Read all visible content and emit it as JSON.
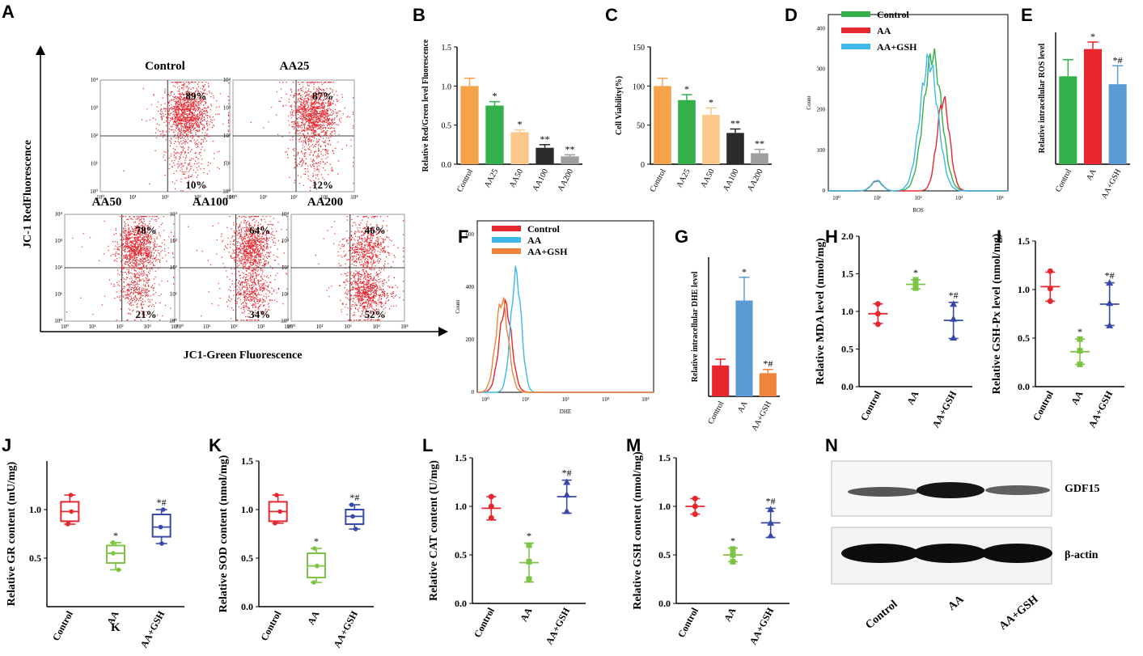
{
  "figure": {
    "letters": [
      "A",
      "B",
      "C",
      "D",
      "E",
      "F",
      "G",
      "H",
      "I",
      "J",
      "K",
      "L",
      "M",
      "N"
    ]
  },
  "colors": {
    "red": "#e8262d",
    "green": "#33b04a",
    "orange": "#f6a24a",
    "lightorange": "#f9c88a",
    "dark": "#2b2b2b",
    "gray": "#9e9e9e",
    "blue": "#5b9bd5",
    "cyan": "#3db8e8",
    "navy": "#3949ab",
    "lime": "#7cc443",
    "floworange": "#f0843a"
  },
  "panelA": {
    "y_axis_label": "JC-1 RedFluorescence",
    "x_axis_label": "JC1-Green Fluorescence",
    "plots": [
      {
        "name": "Control",
        "upper": "89%",
        "lower": "10%"
      },
      {
        "name": "AA25",
        "upper": "87%",
        "lower": "12%"
      },
      {
        "name": "AA50",
        "upper": "78%",
        "lower": "21%"
      },
      {
        "name": "AA100",
        "upper": "64%",
        "lower": "34%"
      },
      {
        "name": "AA200",
        "upper": "46%",
        "lower": "52%"
      }
    ],
    "tick_labels": [
      "10⁰",
      "10¹",
      "10²",
      "10³",
      "10⁴"
    ]
  },
  "chart_data": [
    {
      "panel": "B",
      "type": "bar",
      "ylabel": "Relative Red/Green level Fluorescence",
      "categories": [
        "Control",
        "AA25",
        "AA50",
        "AA100",
        "AA200"
      ],
      "values": [
        1.0,
        0.75,
        0.41,
        0.21,
        0.1
      ],
      "errors": [
        0.1,
        0.05,
        0.03,
        0.04,
        0.02
      ],
      "significance": [
        "",
        "*",
        "*",
        "**",
        "**"
      ],
      "ylim": [
        0,
        1.5
      ],
      "yticks": [
        "0.0",
        "0.5",
        "1.0",
        "1.5"
      ]
    },
    {
      "panel": "C",
      "type": "bar",
      "ylabel": "Cell Viability(%)",
      "categories": [
        "Control",
        "AA25",
        "AA50",
        "AA100",
        "AA200"
      ],
      "values": [
        100,
        82,
        63,
        40,
        14
      ],
      "errors": [
        10,
        7,
        9,
        5,
        5
      ],
      "significance": [
        "",
        "*",
        "*",
        "**",
        "**"
      ],
      "ylim": [
        0,
        150
      ],
      "yticks": [
        "0",
        "50",
        "100",
        "150"
      ]
    },
    {
      "panel": "D",
      "type": "line",
      "xlabel": "ROS",
      "ylabel": "Count",
      "legend": [
        "Control",
        "AA",
        "AA+GSH"
      ],
      "yticks": [
        "0",
        "100",
        "200",
        "300",
        "400"
      ],
      "xticks": [
        "10⁰",
        "10¹",
        "10²",
        "10³",
        "10⁴"
      ],
      "peak_counts": [
        335,
        225,
        320
      ]
    },
    {
      "panel": "E",
      "type": "bar",
      "ylabel": "Relative intracellular ROS level",
      "categories": [
        "Control",
        "AA",
        "AA+GSH"
      ],
      "values": [
        1.0,
        1.31,
        0.91
      ],
      "errors": [
        0.19,
        0.08,
        0.21
      ],
      "significance": [
        "",
        "*",
        "*#"
      ],
      "ylim": [
        0,
        1.5
      ],
      "yticks": []
    },
    {
      "panel": "F",
      "type": "line",
      "xlabel": "DHE",
      "ylabel": "Count",
      "legend": [
        "Control",
        "AA",
        "AA+GSH"
      ],
      "yticks": [
        "0",
        "200",
        "400",
        "600"
      ],
      "xticks": [
        "10⁰",
        "10¹",
        "10²",
        "10³",
        "10⁴"
      ],
      "peak_counts": [
        330,
        450,
        350
      ]
    },
    {
      "panel": "G",
      "type": "bar",
      "ylabel": "Relative intracellular DHE level",
      "categories": [
        "Control",
        "AA",
        "AA+GSH"
      ],
      "values": [
        1.0,
        3.1,
        0.75
      ],
      "errors": [
        0.2,
        0.75,
        0.12
      ],
      "significance": [
        "",
        "*",
        "*#"
      ],
      "ylim": [
        0,
        4.5
      ],
      "yticks": []
    },
    {
      "panel": "H",
      "type": "scatter",
      "ylabel": "Relative MDA level (nmol/mg)",
      "categories": [
        "Control",
        "AA",
        "AA+GSH"
      ],
      "means": [
        0.97,
        1.36,
        0.88
      ],
      "sd": [
        0.13,
        0.06,
        0.24
      ],
      "points": [
        [
          1.1,
          0.97,
          0.83
        ],
        [
          1.42,
          1.35,
          1.31
        ],
        [
          1.1,
          0.9,
          0.65
        ]
      ],
      "significance": [
        "",
        "*",
        "*#"
      ],
      "ylim": [
        0,
        2.0
      ],
      "yticks": [
        "0.0",
        "0.5",
        "1.0",
        "1.5",
        "2.0"
      ]
    },
    {
      "panel": "I",
      "type": "scatter",
      "ylabel": "Relative GSH-Px level (nmol/mg)",
      "categories": [
        "Control",
        "AA",
        "AA+GSH"
      ],
      "means": [
        1.03,
        0.36,
        0.85
      ],
      "sd": [
        0.15,
        0.13,
        0.22
      ],
      "points": [
        [
          1.19,
          1.01,
          0.88
        ],
        [
          0.49,
          0.37,
          0.23
        ],
        [
          1.07,
          0.86,
          0.63
        ]
      ],
      "significance": [
        "",
        "*",
        "*#"
      ],
      "ylim": [
        0,
        1.5
      ],
      "yticks": [
        "0.0",
        "0.5",
        "1.0",
        "1.5"
      ]
    },
    {
      "panel": "J",
      "type": "box",
      "ylabel": "Relative GR content (mU/mg)",
      "categories": [
        "Control",
        "AA",
        "AA+GSH"
      ],
      "box": [
        [
          0.85,
          0.88,
          0.98,
          1.08,
          1.15
        ],
        [
          0.38,
          0.45,
          0.55,
          0.63,
          0.66
        ],
        [
          0.65,
          0.72,
          0.82,
          0.95,
          1.0
        ]
      ],
      "significance": [
        "",
        "*",
        "*#"
      ],
      "ylim": [
        0,
        1.5
      ],
      "yticks": [
        "0.5",
        "1.0"
      ],
      "stray_text": "K"
    },
    {
      "panel": "K",
      "type": "box",
      "ylabel": "Relative SOD content (nmol/mg)",
      "categories": [
        "Control",
        "AA",
        "AA+GSH"
      ],
      "box": [
        [
          0.86,
          0.88,
          0.98,
          1.08,
          1.15
        ],
        [
          0.25,
          0.3,
          0.42,
          0.55,
          0.6
        ],
        [
          0.8,
          0.85,
          0.93,
          1.0,
          1.05
        ]
      ],
      "significance": [
        "",
        "*",
        "*#"
      ],
      "ylim": [
        0,
        1.5
      ],
      "yticks": [
        "0.0",
        "0.5",
        "1.0",
        "1.5"
      ]
    },
    {
      "panel": "L",
      "type": "scatter",
      "ylabel": "Relative CAT content (U/mg)",
      "categories": [
        "Control",
        "AA",
        "AA+GSH"
      ],
      "means": [
        0.98,
        0.42,
        1.1
      ],
      "sd": [
        0.12,
        0.2,
        0.17
      ],
      "points": [
        [
          1.1,
          1.0,
          0.88
        ],
        [
          0.6,
          0.43,
          0.25
        ],
        [
          1.25,
          1.12,
          0.95
        ]
      ],
      "significance": [
        "",
        "*",
        "*#"
      ],
      "ylim": [
        0,
        1.5
      ],
      "yticks": [
        "0.0",
        "0.5",
        "1.0",
        "1.5"
      ]
    },
    {
      "panel": "M",
      "type": "scatter",
      "ylabel": "Relative GSH content (nmol/mg)",
      "categories": [
        "Control",
        "AA",
        "AA+GSH"
      ],
      "means": [
        1.0,
        0.5,
        0.83
      ],
      "sd": [
        0.08,
        0.07,
        0.15
      ],
      "points": [
        [
          1.08,
          1.0,
          0.92
        ],
        [
          0.56,
          0.5,
          0.43
        ],
        [
          0.97,
          0.83,
          0.7
        ]
      ],
      "significance": [
        "",
        "*",
        "*#"
      ],
      "ylim": [
        0,
        1.5
      ],
      "yticks": [
        "0.0",
        "0.5",
        "1.0",
        "1.5"
      ]
    }
  ],
  "panelN": {
    "bands": [
      "GDF15",
      "β-actin"
    ],
    "lanes": [
      "Control",
      "AA",
      "AA+GSH"
    ]
  }
}
